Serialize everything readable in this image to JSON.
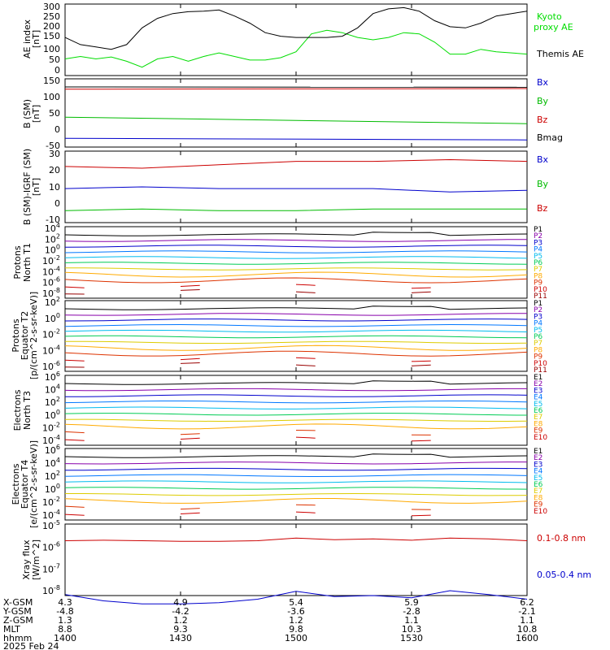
{
  "chart_data": [
    {
      "type": "line",
      "ylabel": "AE index [nT]",
      "yticks": [
        "300",
        "250",
        "200",
        "150",
        "100",
        "50",
        "0"
      ],
      "ylim": [
        0,
        300
      ],
      "series": [
        {
          "name": "Kyoto proxy AE",
          "color": "#00dd00",
          "x": [
            0,
            8,
            16,
            24,
            32,
            40,
            48,
            56,
            64,
            72,
            80,
            88,
            96,
            104,
            112,
            120,
            128,
            136,
            144,
            152,
            160,
            168,
            176,
            184,
            192,
            200,
            208,
            216,
            224,
            232,
            240
          ],
          "values": [
            70,
            80,
            70,
            78,
            60,
            35,
            70,
            80,
            60,
            80,
            95,
            80,
            65,
            65,
            75,
            100,
            175,
            190,
            180,
            160,
            150,
            160,
            180,
            175,
            140,
            90,
            90,
            110,
            100,
            95,
            90
          ]
        },
        {
          "name": "Themis AE",
          "color": "#000000",
          "x": [
            0,
            8,
            16,
            24,
            32,
            40,
            48,
            56,
            64,
            72,
            80,
            88,
            96,
            104,
            112,
            120,
            128,
            136,
            144,
            152,
            160,
            168,
            176,
            184,
            192,
            200,
            208,
            216,
            224,
            232,
            240
          ],
          "values": [
            160,
            130,
            120,
            110,
            130,
            200,
            240,
            260,
            268,
            270,
            275,
            250,
            220,
            180,
            165,
            160,
            160,
            160,
            165,
            200,
            260,
            280,
            285,
            270,
            230,
            205,
            200,
            220,
            250,
            260,
            270
          ]
        }
      ],
      "legend": [
        "Kyoto proxy AE",
        "Themis AE"
      ]
    },
    {
      "type": "line",
      "ylabel": "B (SM) [nT]",
      "yticks": [
        "150",
        "100",
        "50",
        "0",
        "-50"
      ],
      "ylim": [
        -60,
        150
      ],
      "series": [
        {
          "name": "Bx",
          "color": "#0000cc",
          "x": [
            0,
            240
          ],
          "values": [
            -33,
            -38
          ]
        },
        {
          "name": "By",
          "color": "#00bb00",
          "x": [
            0,
            240
          ],
          "values": [
            32,
            12
          ]
        },
        {
          "name": "Bz",
          "color": "#cc0000",
          "x": [
            0,
            240
          ],
          "values": [
            118,
            120
          ]
        },
        {
          "name": "Bmag",
          "color": "#000000",
          "x": [
            0,
            240
          ],
          "values": [
            125,
            124
          ]
        }
      ],
      "legend": [
        "Bx",
        "By",
        "Bz",
        "Bmag"
      ]
    },
    {
      "type": "line",
      "ylabel": "B (SM)-IGRF (SM) [nT]",
      "yticks": [
        "30",
        "20",
        "10",
        "0",
        "-10"
      ],
      "ylim": [
        -12,
        30
      ],
      "series": [
        {
          "name": "Bx",
          "color": "#0000cc",
          "x": [
            0,
            40,
            80,
            120,
            160,
            200,
            240
          ],
          "values": [
            8,
            9,
            8,
            8,
            8,
            6,
            7
          ]
        },
        {
          "name": "By",
          "color": "#00bb00",
          "x": [
            0,
            40,
            80,
            120,
            160,
            200,
            240
          ],
          "values": [
            -5,
            -4,
            -5,
            -5,
            -4,
            -4,
            -4
          ]
        },
        {
          "name": "Bz",
          "color": "#cc0000",
          "x": [
            0,
            40,
            80,
            120,
            160,
            200,
            240
          ],
          "values": [
            21,
            20,
            22,
            24,
            24,
            25,
            24
          ]
        }
      ],
      "legend": [
        "Bx",
        "By",
        "Bz"
      ]
    },
    {
      "type": "line",
      "ylabel": "Protons North T1",
      "scale": "log",
      "yticks": [
        "10^4",
        "10^2",
        "10^0",
        "10^-2",
        "10^-4",
        "10^-6",
        "10^-8"
      ],
      "legend": [
        "P1",
        "P2",
        "P3",
        "P4",
        "P5",
        "P6",
        "P7",
        "P8",
        "P9",
        "P10",
        "P11"
      ]
    },
    {
      "type": "line",
      "ylabel": "Protons Equator T2 [p/(cm^2-s-sr-keV)]",
      "scale": "log",
      "yticks": [
        "10^2",
        "10^0",
        "10^-2",
        "10^-4",
        "10^-6"
      ],
      "legend": [
        "P1",
        "P2",
        "P3",
        "P4",
        "P5",
        "P6",
        "P7",
        "P8",
        "P9",
        "P10",
        "P11"
      ]
    },
    {
      "type": "line",
      "ylabel": "Electrons North T3",
      "scale": "log",
      "yticks": [
        "10^6",
        "10^4",
        "10^2",
        "10^0",
        "10^-2",
        "10^-4"
      ],
      "legend": [
        "E1",
        "E2",
        "E3",
        "E4",
        "E5",
        "E6",
        "E7",
        "E8",
        "E9",
        "E10"
      ]
    },
    {
      "type": "line",
      "ylabel": "Electrons Equator T4 [e/(cm^2-s-sr-keV)]",
      "scale": "log",
      "yticks": [
        "10^6",
        "10^4",
        "10^2",
        "10^0",
        "10^-2",
        "10^-4"
      ],
      "legend": [
        "E1",
        "E2",
        "E3",
        "E4",
        "E5",
        "E6",
        "E7",
        "E8",
        "E9",
        "E10"
      ]
    },
    {
      "type": "line",
      "ylabel": "Xray flux [W/m^2]",
      "scale": "log",
      "yticks": [
        "10^-5",
        "10^-6",
        "10^-7",
        "10^-8"
      ],
      "series": [
        {
          "name": "0.1-0.8 nm",
          "color": "#cc0000",
          "x": [
            0,
            20,
            40,
            60,
            80,
            100,
            120,
            140,
            160,
            180,
            200,
            220,
            240
          ],
          "values": [
            2e-06,
            2.1e-06,
            2e-06,
            1.9e-06,
            1.9e-06,
            2e-06,
            2.6e-06,
            2.2e-06,
            2.4e-06,
            2.1e-06,
            2.6e-06,
            2.4e-06,
            2e-06
          ]
        },
        {
          "name": "0.05-0.4 nm",
          "color": "#0000cc",
          "x": [
            0,
            20,
            40,
            60,
            80,
            100,
            120,
            140,
            160,
            180,
            200,
            220,
            240
          ],
          "values": [
            1.1e-08,
            6e-09,
            4.5e-09,
            4.5e-09,
            5e-09,
            7e-09,
            1.5e-08,
            9e-09,
            1e-08,
            8e-09,
            1.6e-08,
            1.1e-08,
            7e-09
          ]
        }
      ],
      "legend": [
        "0.1-0.8 nm",
        "0.05-0.4 nm"
      ]
    }
  ],
  "labels": {
    "panel1_y1": "AE index",
    "panel1_y2": "[nT]",
    "panel2_y1": "B (SM)",
    "panel2_y2": "[nT]",
    "panel3_y1": "B (SM)-IGRF (SM)",
    "panel3_y2": "[nT]",
    "panel4_y1": "Protons",
    "panel4_y2": "North T1",
    "panel5_y1": "Protons",
    "panel5_y2": "Equator T2",
    "panel5_y3": "[p/(cm^2-s-sr-keV)]",
    "panel6_y1": "Electrons",
    "panel6_y2": "North T3",
    "panel7_y1": "Electrons",
    "panel7_y2": "Equator T4",
    "panel7_y3": "[e/(cm^2-s-sr-keV)]",
    "panel8_y1": "Xray flux",
    "panel8_y2": "[W/m^2]"
  },
  "legend1": {
    "kyoto_1": "Kyoto",
    "kyoto_2": "proxy AE",
    "themis": "Themis AE"
  },
  "legend2": {
    "bx": "Bx",
    "by": "By",
    "bz": "Bz",
    "bmag": "Bmag"
  },
  "legend3": {
    "bx": "Bx",
    "by": "By",
    "bz": "Bz"
  },
  "legend8": {
    "long": "0.1-0.8 nm",
    "short": "0.05-0.4 nm"
  },
  "ephemeris": {
    "row_labels": [
      "X-GSM",
      "Y-GSM",
      "Z-GSM",
      "MLT",
      "hhmm"
    ],
    "date": "2025 Feb 24",
    "columns": [
      {
        "x": "4.3",
        "y": "-4.8",
        "z": "1.3",
        "mlt": "8.8",
        "hhmm": "1400"
      },
      {
        "x": "4.9",
        "y": "-4.2",
        "z": "1.2",
        "mlt": "9.3",
        "hhmm": "1430"
      },
      {
        "x": "5.4",
        "y": "-3.6",
        "z": "1.2",
        "mlt": "9.8",
        "hhmm": "1500"
      },
      {
        "x": "5.9",
        "y": "-2.8",
        "z": "1.1",
        "mlt": "10.3",
        "hhmm": "1530"
      },
      {
        "x": "6.2",
        "y": "-2.1",
        "z": "1.1",
        "mlt": "10.8",
        "hhmm": "1600"
      }
    ]
  }
}
